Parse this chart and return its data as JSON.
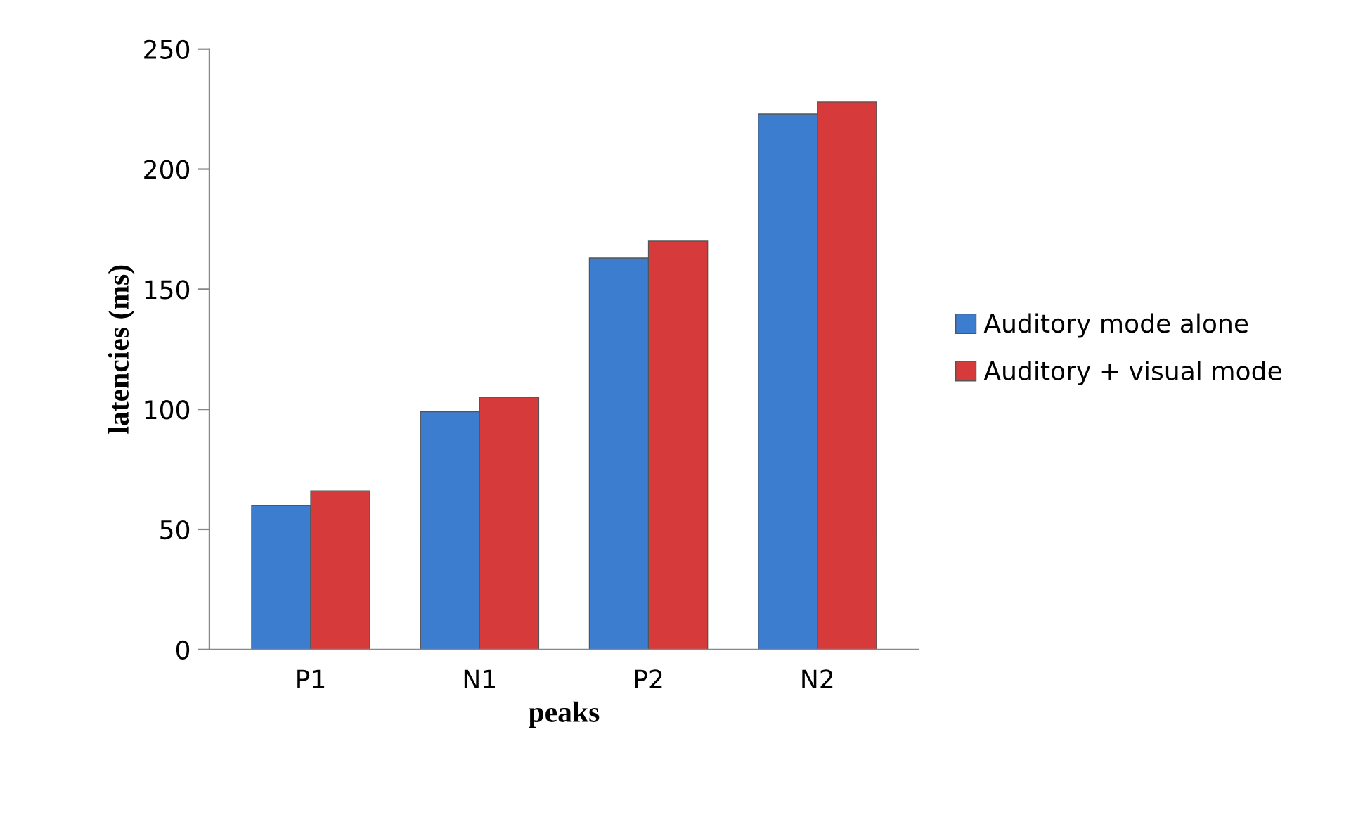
{
  "chart_data": {
    "type": "bar",
    "xlabel": "peaks",
    "ylabel": "latencies (ms)",
    "categories": [
      "P1",
      "N1",
      "P2",
      "N2"
    ],
    "series": [
      {
        "name": "Auditory mode alone",
        "color": "#3c7dd0",
        "values": [
          60,
          99,
          163,
          223
        ]
      },
      {
        "name": "Auditory + visual mode",
        "color": "#d63a3a",
        "values": [
          66,
          105,
          170,
          228
        ]
      }
    ],
    "ylim": [
      0,
      250
    ],
    "yticks": [
      0,
      50,
      100,
      150,
      200,
      250
    ],
    "grid": false,
    "legend": "right"
  }
}
